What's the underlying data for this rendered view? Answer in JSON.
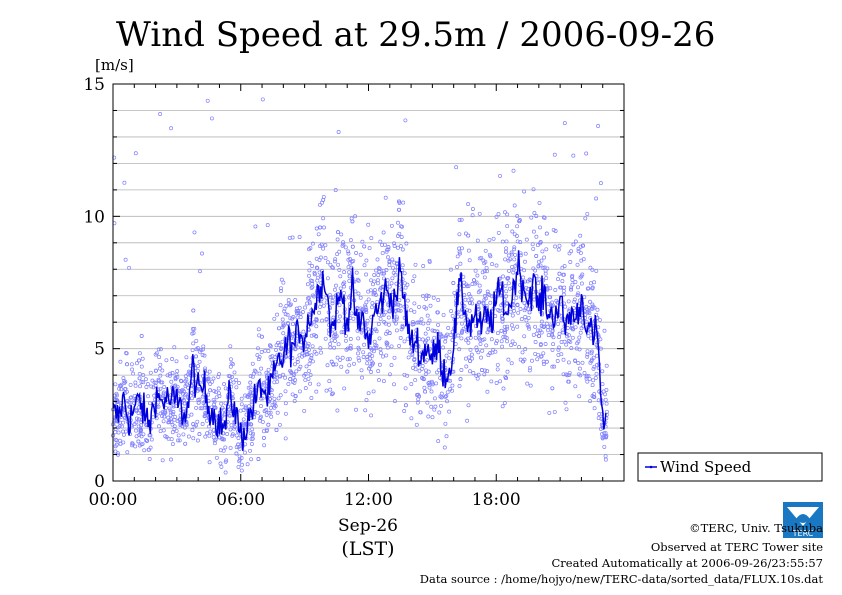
{
  "chart_data": {
    "type": "line+scatter",
    "title": "Wind Speed at 29.5m / 2006-09-26",
    "ylabel": "[m/s]",
    "ylim": [
      0,
      15
    ],
    "yticks": [
      0,
      5,
      10,
      15
    ],
    "xlim_hours": [
      0,
      24
    ],
    "xticks": [
      {
        "hour": 0,
        "label": "00:00"
      },
      {
        "hour": 6,
        "label": "06:00"
      },
      {
        "hour": 12,
        "label": "12:00"
      },
      {
        "hour": 18,
        "label": "18:00"
      }
    ],
    "xlabel_date": "Sep-26",
    "xlabel_tz": "(LST)",
    "grid": "horizontal",
    "legend_position": "right",
    "series": [
      {
        "name": "Wind Speed",
        "kind": "mean-line",
        "color": "#0000dd",
        "points": [
          [
            0.0,
            2.6
          ],
          [
            0.25,
            2.4
          ],
          [
            0.5,
            3.1
          ],
          [
            0.75,
            2.3
          ],
          [
            1.0,
            2.7
          ],
          [
            1.25,
            3.1
          ],
          [
            1.5,
            2.4
          ],
          [
            1.75,
            2.2
          ],
          [
            2.0,
            3.3
          ],
          [
            2.25,
            3.0
          ],
          [
            2.5,
            3.1
          ],
          [
            2.75,
            3.0
          ],
          [
            3.0,
            3.0
          ],
          [
            3.25,
            2.6
          ],
          [
            3.5,
            2.7
          ],
          [
            3.75,
            4.3
          ],
          [
            4.0,
            3.3
          ],
          [
            4.25,
            3.6
          ],
          [
            4.5,
            2.9
          ],
          [
            4.75,
            2.5
          ],
          [
            5.0,
            2.2
          ],
          [
            5.25,
            2.0
          ],
          [
            5.5,
            3.3
          ],
          [
            5.75,
            2.6
          ],
          [
            6.0,
            1.7
          ],
          [
            6.25,
            2.0
          ],
          [
            6.5,
            2.7
          ],
          [
            6.75,
            3.2
          ],
          [
            7.0,
            3.6
          ],
          [
            7.25,
            3.1
          ],
          [
            7.5,
            3.8
          ],
          [
            7.75,
            4.4
          ],
          [
            8.0,
            4.7
          ],
          [
            8.25,
            5.3
          ],
          [
            8.5,
            5.0
          ],
          [
            8.75,
            5.8
          ],
          [
            9.0,
            5.4
          ],
          [
            9.25,
            6.3
          ],
          [
            9.5,
            6.6
          ],
          [
            9.75,
            7.7
          ],
          [
            10.0,
            7.5
          ],
          [
            10.25,
            5.6
          ],
          [
            10.5,
            6.5
          ],
          [
            10.75,
            7.1
          ],
          [
            11.0,
            6.0
          ],
          [
            11.25,
            7.2
          ],
          [
            11.5,
            5.7
          ],
          [
            11.75,
            6.2
          ],
          [
            12.0,
            5.1
          ],
          [
            12.25,
            6.3
          ],
          [
            12.5,
            6.5
          ],
          [
            12.75,
            7.2
          ],
          [
            13.0,
            7.0
          ],
          [
            13.25,
            6.9
          ],
          [
            13.5,
            7.9
          ],
          [
            13.75,
            6.3
          ],
          [
            14.0,
            5.1
          ],
          [
            14.25,
            5.4
          ],
          [
            14.5,
            4.6
          ],
          [
            14.75,
            5.2
          ],
          [
            15.0,
            4.5
          ],
          [
            15.25,
            5.2
          ],
          [
            15.5,
            4.2
          ],
          [
            15.75,
            4.0
          ],
          [
            16.0,
            5.2
          ],
          [
            16.25,
            7.3
          ],
          [
            16.5,
            6.6
          ],
          [
            16.75,
            5.8
          ],
          [
            17.0,
            6.4
          ],
          [
            17.25,
            5.7
          ],
          [
            17.5,
            6.2
          ],
          [
            17.75,
            6.0
          ],
          [
            18.0,
            6.8
          ],
          [
            18.25,
            7.2
          ],
          [
            18.5,
            6.3
          ],
          [
            18.75,
            7.0
          ],
          [
            19.0,
            8.2
          ],
          [
            19.25,
            7.5
          ],
          [
            19.5,
            6.8
          ],
          [
            19.75,
            7.6
          ],
          [
            20.0,
            6.5
          ],
          [
            20.25,
            7.1
          ],
          [
            20.5,
            6.2
          ],
          [
            20.75,
            6.4
          ],
          [
            21.0,
            6.7
          ],
          [
            21.25,
            5.8
          ],
          [
            21.5,
            6.4
          ],
          [
            21.75,
            6.1
          ],
          [
            22.0,
            6.9
          ],
          [
            22.25,
            6.0
          ],
          [
            22.5,
            5.4
          ],
          [
            22.75,
            5.6
          ],
          [
            22.9,
            3.6
          ],
          [
            23.0,
            2.2
          ],
          [
            23.1,
            2.0
          ],
          [
            23.2,
            2.6
          ]
        ]
      },
      {
        "kind": "samples-10s",
        "color": "#8080ff",
        "spread_m_s": 1.6,
        "gust_max_m_s": 14.5
      }
    ]
  },
  "credits": {
    "copyright": "©TERC, Univ. Tsukuba",
    "observed": "Observed at TERC Tower site",
    "created": "Created Automatically at 2006-09-26/23:55:57",
    "source": "Data source : /home/hojyo/new/TERC-data/sorted_data/FLUX.10s.dat",
    "logo_text": "TERC"
  },
  "colors": {
    "line": "#0000dd",
    "scatter": "#8080ff",
    "grid": "#b4b4b4",
    "logo": "#1a78c2"
  }
}
